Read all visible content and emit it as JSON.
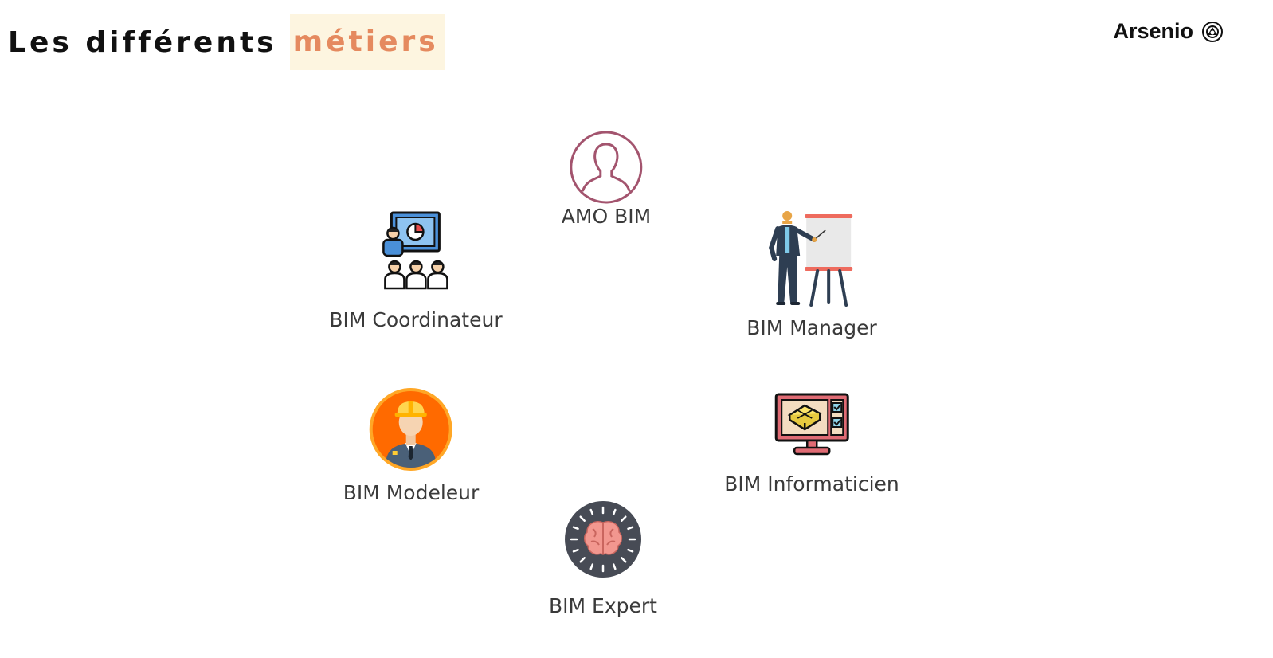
{
  "header": {
    "title_plain": "Les différents",
    "title_highlight": "métiers",
    "brand": "Arsenio"
  },
  "roles": [
    {
      "label": "AMO BIM",
      "icon": "person-outline-icon"
    },
    {
      "label": "BIM Coordinateur",
      "icon": "team-presentation-icon"
    },
    {
      "label": "BIM Manager",
      "icon": "presenter-flipchart-icon"
    },
    {
      "label": "BIM Modeleur",
      "icon": "engineer-hardhat-icon"
    },
    {
      "label": "BIM Informaticien",
      "icon": "computer-3d-model-icon"
    },
    {
      "label": "BIM Expert",
      "icon": "brain-icon"
    }
  ],
  "colors": {
    "highlight_bg": "#fdf5e0",
    "highlight_text": "#e58a5f",
    "label_text": "#3a3a3a",
    "amo_outline": "#a3546e",
    "modeleur_orange": "#ff6a00",
    "expert_dark": "#474b55",
    "brain_pink": "#f2978f"
  }
}
